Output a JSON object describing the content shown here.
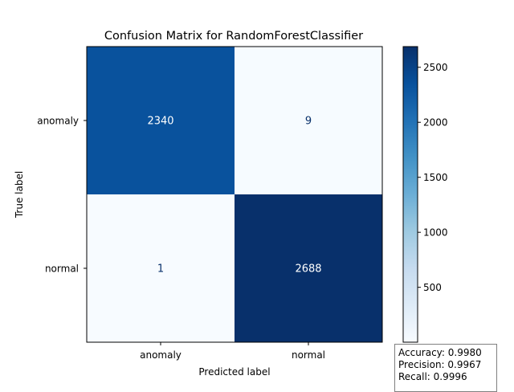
{
  "chart_data": {
    "type": "heatmap",
    "title": "Confusion Matrix for RandomForestClassifier",
    "xlabel": "Predicted label",
    "ylabel": "True label",
    "x_categories": [
      "anomaly",
      "normal"
    ],
    "y_categories": [
      "anomaly",
      "normal"
    ],
    "matrix": [
      [
        2340,
        9
      ],
      [
        1,
        2688
      ]
    ],
    "colormap": "Blues",
    "colorbar": {
      "min": 1,
      "max": 2688,
      "ticks": [
        500,
        1000,
        1500,
        2000,
        2500
      ]
    },
    "grid": false
  },
  "metrics": [
    "Accuracy: 0.9980",
    "Precision: 0.9967",
    "Recall: 0.9996"
  ]
}
